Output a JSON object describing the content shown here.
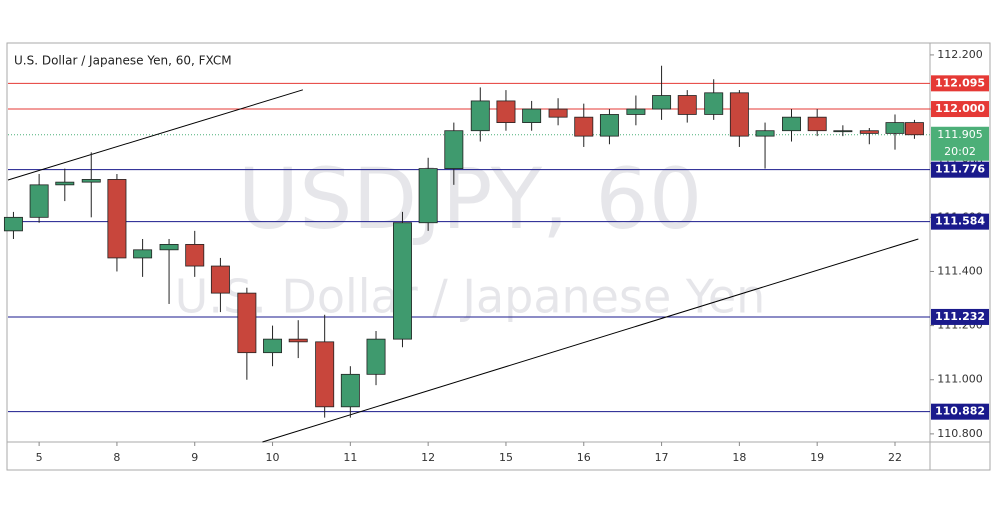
{
  "chart_data": {
    "type": "candlestick",
    "title": "U.S. Dollar / Japanese Yen, 60, FXCM",
    "watermark": [
      "USDJPY, 60",
      "U.S. Dollar / Japanese Yen"
    ],
    "x": [
      -0.33,
      0,
      0.33,
      0.67,
      1,
      1.33,
      1.67,
      2,
      2.33,
      2.67,
      3,
      3.33,
      3.67,
      4,
      4.33,
      4.67,
      5,
      5.33,
      5.67,
      6,
      6.33,
      6.67,
      7,
      7.33,
      7.67,
      8,
      8.33,
      8.67,
      9,
      9.33,
      9.67,
      10,
      10.33,
      10.67,
      11,
      11.25
    ],
    "open": [
      111.55,
      111.6,
      111.72,
      111.73,
      111.74,
      111.45,
      111.48,
      111.5,
      111.42,
      111.32,
      111.1,
      111.15,
      111.14,
      110.9,
      111.02,
      111.15,
      111.58,
      111.78,
      111.92,
      112.03,
      111.95,
      112.0,
      111.97,
      111.9,
      111.98,
      112.0,
      112.05,
      111.98,
      112.06,
      111.9,
      111.92,
      111.97,
      111.92,
      111.92,
      111.91,
      111.95
    ],
    "high": [
      111.62,
      111.76,
      111.78,
      111.84,
      111.76,
      111.52,
      111.52,
      111.55,
      111.45,
      111.34,
      111.2,
      111.22,
      111.24,
      111.05,
      111.18,
      111.62,
      111.82,
      111.95,
      112.08,
      112.07,
      112.03,
      112.04,
      112.02,
      112.0,
      112.05,
      112.16,
      112.07,
      112.11,
      112.07,
      111.95,
      112.0,
      112.0,
      111.94,
      111.93,
      111.98,
      111.96
    ],
    "low": [
      111.52,
      111.58,
      111.66,
      111.6,
      111.4,
      111.38,
      111.28,
      111.38,
      111.25,
      111.0,
      111.05,
      111.08,
      110.86,
      110.86,
      110.98,
      111.12,
      111.55,
      111.72,
      111.88,
      111.92,
      111.92,
      111.94,
      111.86,
      111.87,
      111.94,
      111.96,
      111.95,
      111.96,
      111.86,
      111.78,
      111.88,
      111.9,
      111.9,
      111.87,
      111.85,
      111.89
    ],
    "close": [
      111.6,
      111.72,
      111.73,
      111.74,
      111.45,
      111.48,
      111.5,
      111.42,
      111.32,
      111.1,
      111.15,
      111.14,
      110.9,
      111.02,
      111.15,
      111.58,
      111.78,
      111.92,
      112.03,
      111.95,
      112.0,
      111.97,
      111.9,
      111.98,
      112.0,
      112.05,
      111.98,
      112.06,
      111.9,
      111.92,
      111.97,
      111.92,
      111.92,
      111.91,
      111.95,
      111.905
    ],
    "up_color": "#3f9a6e",
    "down_color": "#c8463c",
    "xlim": [
      -0.4,
      11.45
    ],
    "xticks": [
      {
        "value": 0,
        "label": "5"
      },
      {
        "value": 1,
        "label": "8"
      },
      {
        "value": 2,
        "label": "9"
      },
      {
        "value": 3,
        "label": "10"
      },
      {
        "value": 4,
        "label": "11"
      },
      {
        "value": 5,
        "label": "12"
      },
      {
        "value": 6,
        "label": "15"
      },
      {
        "value": 7,
        "label": "16"
      },
      {
        "value": 8,
        "label": "17"
      },
      {
        "value": 9,
        "label": "18"
      },
      {
        "value": 10,
        "label": "19"
      },
      {
        "value": 11,
        "label": "22"
      }
    ],
    "ylim": [
      110.77,
      112.244
    ],
    "yticks": [
      {
        "value": 110.8,
        "label": "110.800"
      },
      {
        "value": 111,
        "label": "111.000"
      },
      {
        "value": 111.2,
        "label": "111.200"
      },
      {
        "value": 111.4,
        "label": "111.400"
      },
      {
        "value": 111.6,
        "label": "111.600"
      },
      {
        "value": 111.8,
        "label": "111.800"
      },
      {
        "value": 112,
        "label": "112.000"
      },
      {
        "value": 112.2,
        "label": "112.200"
      }
    ],
    "levels": [
      {
        "value": 112.095,
        "label": "112.095",
        "color": "#e53935"
      },
      {
        "value": 112,
        "label": "112.000",
        "color": "#e53935"
      },
      {
        "value": 111.776,
        "label": "111.776",
        "color": "#1a1a8c"
      },
      {
        "value": 111.584,
        "label": "111.584",
        "color": "#1a1a8c"
      },
      {
        "value": 111.232,
        "label": "111.232",
        "color": "#1a1a8c"
      },
      {
        "value": 110.882,
        "label": "110.882",
        "color": "#1a1a8c"
      }
    ],
    "current_price": {
      "value": 111.905,
      "label": "111.905",
      "countdown": "20:02",
      "color": "#4caf78"
    },
    "trend_lines": [
      {
        "x": [
          -0.4,
          3.39
        ],
        "y": [
          111.738,
          112.071
        ]
      },
      {
        "x": [
          2.87,
          11.3
        ],
        "y": [
          110.77,
          111.52
        ]
      }
    ]
  }
}
